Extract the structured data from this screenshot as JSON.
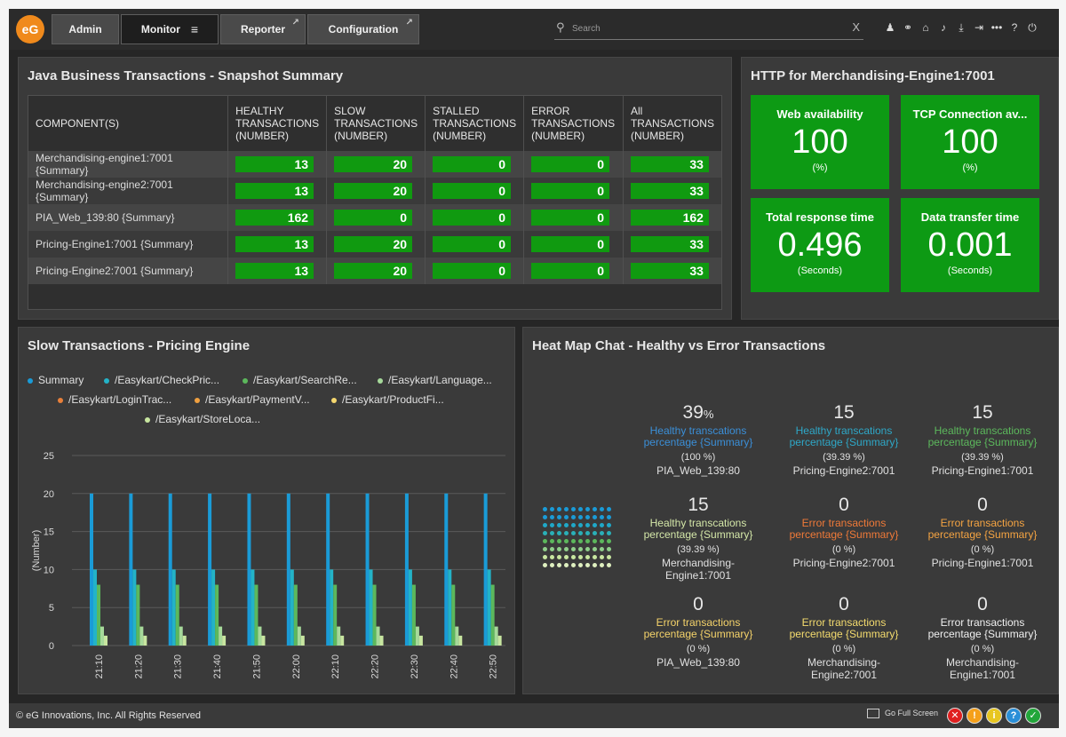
{
  "header": {
    "logo": "eG",
    "tabs": [
      {
        "label": "Admin"
      },
      {
        "label": "Monitor",
        "menu_icon": "≡"
      },
      {
        "label": "Reporter",
        "ext_icon": "↗"
      },
      {
        "label": "Configuration",
        "ext_icon": "↗"
      }
    ],
    "search": {
      "placeholder": "Search",
      "icon": "⚲",
      "clear": "X"
    },
    "icons": [
      "user-icon",
      "link-icon",
      "stats-icon",
      "bell-icon",
      "download-icon",
      "logout-icon",
      "more-icon",
      "help-icon",
      "power-icon"
    ],
    "icon_glyphs": [
      "♟",
      "⚭",
      "⌂",
      "♪",
      "⤓",
      "⇥",
      "•••",
      "?",
      "⏻"
    ]
  },
  "snapshot": {
    "title": "Java Business Transactions - Snapshot Summary",
    "columns": [
      "COMPONENT(S)",
      "HEALTHY TRANSACTIONS (NUMBER)",
      "SLOW TRANSACTIONS (NUMBER)",
      "STALLED TRANSACTIONS (NUMBER)",
      "ERROR TRANSACTIONS (NUMBER)",
      "All TRANSACTIONS (NUMBER)"
    ],
    "rows": [
      {
        "component": "Merchandising-engine1:7001 {Summary}",
        "values": [
          "13",
          "20",
          "0",
          "0",
          "33"
        ]
      },
      {
        "component": "Merchandising-engine2:7001 {Summary}",
        "values": [
          "13",
          "20",
          "0",
          "0",
          "33"
        ]
      },
      {
        "component": "PIA_Web_139:80 {Summary}",
        "values": [
          "162",
          "0",
          "0",
          "0",
          "162"
        ]
      },
      {
        "component": "Pricing-Engine1:7001 {Summary}",
        "values": [
          "13",
          "20",
          "0",
          "0",
          "33"
        ]
      },
      {
        "component": "Pricing-Engine2:7001 {Summary}",
        "values": [
          "13",
          "20",
          "0",
          "0",
          "33"
        ]
      }
    ],
    "bar_color": "#109a10"
  },
  "http": {
    "title": "HTTP for Merchandising-Engine1:7001",
    "tiles": [
      {
        "label": "Web availability",
        "value": "100",
        "unit": "(%)"
      },
      {
        "label": "TCP Connection av...",
        "value": "100",
        "unit": "(%)"
      },
      {
        "label": "Total response time",
        "value": "0.496",
        "unit": "(Seconds)"
      },
      {
        "label": "Data transfer time",
        "value": "0.001",
        "unit": "(Seconds)"
      }
    ],
    "tile_color": "#0d9a14"
  },
  "slow": {
    "title": "Slow Transactions - Pricing Engine",
    "legend": [
      {
        "name": "Summary",
        "color": "#1a9bd7"
      },
      {
        "name": "/Easykart/CheckPric...",
        "color": "#23b3c8"
      },
      {
        "name": "/Easykart/SearchRe...",
        "color": "#5cb85c"
      },
      {
        "name": "/Easykart/Language...",
        "color": "#a6d99a"
      },
      {
        "name": "/Easykart/LoginTrac...",
        "color": "#e8803a"
      },
      {
        "name": "/Easykart/PaymentV...",
        "color": "#f0a040"
      },
      {
        "name": "/Easykart/ProductFi...",
        "color": "#f5d76e"
      },
      {
        "name": "/Easykart/StoreLoca...",
        "color": "#c8e6a0"
      }
    ]
  },
  "chart_data": {
    "type": "bar",
    "title": "Slow Transactions - Pricing Engine",
    "ylabel": "(Number)",
    "xlabel": "",
    "ylim": [
      0,
      25
    ],
    "yticks": [
      0,
      5,
      10,
      15,
      20,
      25
    ],
    "grid": true,
    "legend_position": "top",
    "categories": [
      "21:10",
      "21:20",
      "21:30",
      "21:40",
      "21:50",
      "22:00",
      "22:10",
      "22:20",
      "22:30",
      "22:40",
      "22:50"
    ],
    "series": [
      {
        "name": "Summary",
        "values": [
          20,
          20,
          20,
          20,
          20,
          20,
          20,
          20,
          20,
          20,
          20
        ]
      },
      {
        "name": "/Easykart/CheckPric...",
        "values": [
          10,
          10,
          10,
          10,
          10,
          10,
          10,
          10,
          10,
          10,
          10
        ]
      },
      {
        "name": "/Easykart/SearchRe...",
        "values": [
          8,
          8,
          8,
          8,
          8,
          8,
          8,
          8,
          8,
          8,
          8
        ]
      },
      {
        "name": "/Easykart/Language...",
        "values": [
          2.5,
          2.5,
          2.5,
          2.5,
          2.5,
          2.5,
          2.5,
          2.5,
          2.5,
          2.5,
          2.5
        ]
      },
      {
        "name": "/Easykart/StoreLoca...",
        "values": [
          1.3,
          1.3,
          1.3,
          1.3,
          1.3,
          1.3,
          1.3,
          1.3,
          1.3,
          1.3,
          1.3
        ]
      }
    ],
    "series_colors": [
      "#1a9bd7",
      "#23b3c8",
      "#5cb85c",
      "#a6d99a",
      "#c8e6a0"
    ]
  },
  "heatmap": {
    "title": "Heat Map Chat - Healthy vs Error Transactions",
    "cells": [
      {
        "value": "39",
        "suffix": "%",
        "label": "Healthy transcations percentage {Summary}",
        "sub": "(100 %)",
        "component": "PIA_Web_139:80",
        "color": "#3a8fd8"
      },
      {
        "value": "15",
        "suffix": "",
        "label": "Healthy transcations percentage {Summary}",
        "sub": "(39.39 %)",
        "component": "Pricing-Engine2:7001",
        "color": "#2ea8c8"
      },
      {
        "value": "15",
        "suffix": "",
        "label": "Healthy transcations percentage {Summary}",
        "sub": "(39.39 %)",
        "component": "Pricing-Engine1:7001",
        "color": "#5cb85c"
      },
      {
        "value": "15",
        "suffix": "",
        "label": "Healthy transcations percentage {Summary}",
        "sub": "(39.39 %)",
        "component": "Merchandising-Engine1:7001",
        "color": "#d4e7a8"
      },
      {
        "value": "0",
        "suffix": "",
        "label": "Error transactions percentage {Summary}",
        "sub": "(0 %)",
        "component": "Pricing-Engine2:7001",
        "color": "#f07a38"
      },
      {
        "value": "0",
        "suffix": "",
        "label": "Error transactions percentage {Summary}",
        "sub": "(0 %)",
        "component": "Pricing-Engine1:7001",
        "color": "#f5a442"
      },
      {
        "value": "0",
        "suffix": "",
        "label": "Error transactions percentage {Summary}",
        "sub": "(0 %)",
        "component": "PIA_Web_139:80",
        "color": "#f5d36a"
      },
      {
        "value": "0",
        "suffix": "",
        "label": "Error transactions percentage {Summary}",
        "sub": "(0 %)",
        "component": "Merchandising-Engine2:7001",
        "color": "#f5dc6e"
      },
      {
        "value": "0",
        "suffix": "",
        "label": "Error transactions percentage {Summary}",
        "sub": "(0 %)",
        "component": "Merchandising-Engine1:7001",
        "color": "#f0f0f0"
      }
    ],
    "dot_rows": [
      "#1a9bd7",
      "#1a9bd7",
      "#1fa8c8",
      "#2ab0b8",
      "#5cb85c",
      "#8fcf8a",
      "#c8e6a0",
      "#dff0c0"
    ]
  },
  "footer": {
    "copyright": "© eG Innovations, Inc. All Rights Reserved",
    "full_screen": "Go Full Screen",
    "status": [
      {
        "glyph": "✕",
        "color": "#e02020"
      },
      {
        "glyph": "!",
        "color": "#f5a01a"
      },
      {
        "glyph": "i",
        "color": "#e8c620"
      },
      {
        "glyph": "?",
        "color": "#2a8fd8"
      },
      {
        "glyph": "✓",
        "color": "#22a63a"
      }
    ]
  }
}
